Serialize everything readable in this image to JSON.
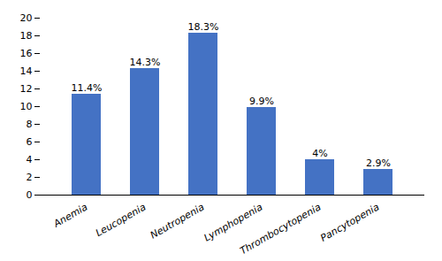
{
  "chart_data": {
    "type": "bar",
    "categories": [
      "Anemia",
      "Leucopenia",
      "Neutropenia",
      "Lymphopenia",
      "Thrombocytopenia",
      "Pancytopenia"
    ],
    "values": [
      11.4,
      14.3,
      18.3,
      9.9,
      4.0,
      2.9
    ],
    "value_labels": [
      "11.4%",
      "14.3%",
      "18.3%",
      "9.9%",
      "4%",
      "2.9%"
    ],
    "data_labels": true,
    "color": "#4472C4",
    "ylim": [
      0,
      20
    ],
    "yticks": [
      0,
      2,
      4,
      6,
      8,
      10,
      12,
      14,
      16,
      18,
      20
    ],
    "grid": false
  }
}
